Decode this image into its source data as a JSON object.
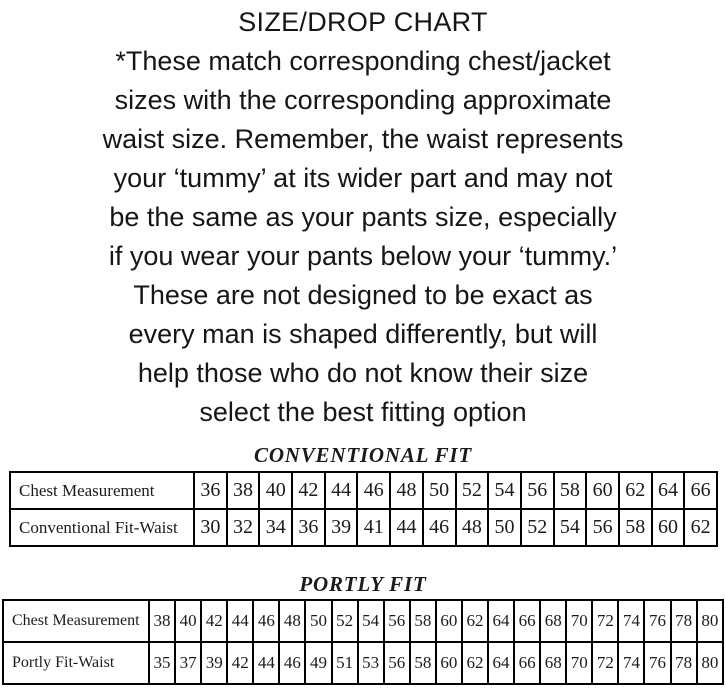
{
  "page": {
    "title": "SIZE/DROP CHART",
    "description_lines": [
      "*These match corresponding chest/jacket",
      "sizes with the corresponding approximate",
      "waist size. Remember, the waist represents",
      "your ‘tummy’ at its wider part and may not",
      "be the same as your pants size, especially",
      "if you wear your pants below your ‘tummy.’",
      "These are not designed to be exact as",
      "every man is shaped differently, but will",
      "help those who do not know their size",
      "select the best fitting option"
    ]
  },
  "colors": {
    "background": "#ffffff",
    "text": "#161616",
    "table_border": "#000000"
  },
  "chart_data": [
    {
      "type": "table",
      "title": "CONVENTIONAL FIT",
      "rows": [
        {
          "label": "Chest Measurement",
          "values": [
            36,
            38,
            40,
            42,
            44,
            46,
            48,
            50,
            52,
            54,
            56,
            58,
            60,
            62,
            64,
            66
          ]
        },
        {
          "label": "Conventional Fit-Waist",
          "values": [
            30,
            32,
            34,
            36,
            39,
            41,
            44,
            46,
            48,
            50,
            52,
            54,
            56,
            58,
            60,
            62
          ]
        }
      ]
    },
    {
      "type": "table",
      "title": "PORTLY FIT",
      "rows": [
        {
          "label": "Chest Measurement",
          "values": [
            38,
            40,
            42,
            44,
            46,
            48,
            50,
            52,
            54,
            56,
            58,
            60,
            62,
            64,
            66,
            68,
            70,
            72,
            74,
            76,
            78,
            80
          ]
        },
        {
          "label": "Portly Fit-Waist",
          "values": [
            35,
            37,
            39,
            42,
            44,
            46,
            49,
            51,
            53,
            56,
            58,
            60,
            62,
            64,
            66,
            68,
            70,
            72,
            74,
            76,
            78,
            80
          ]
        }
      ]
    }
  ]
}
